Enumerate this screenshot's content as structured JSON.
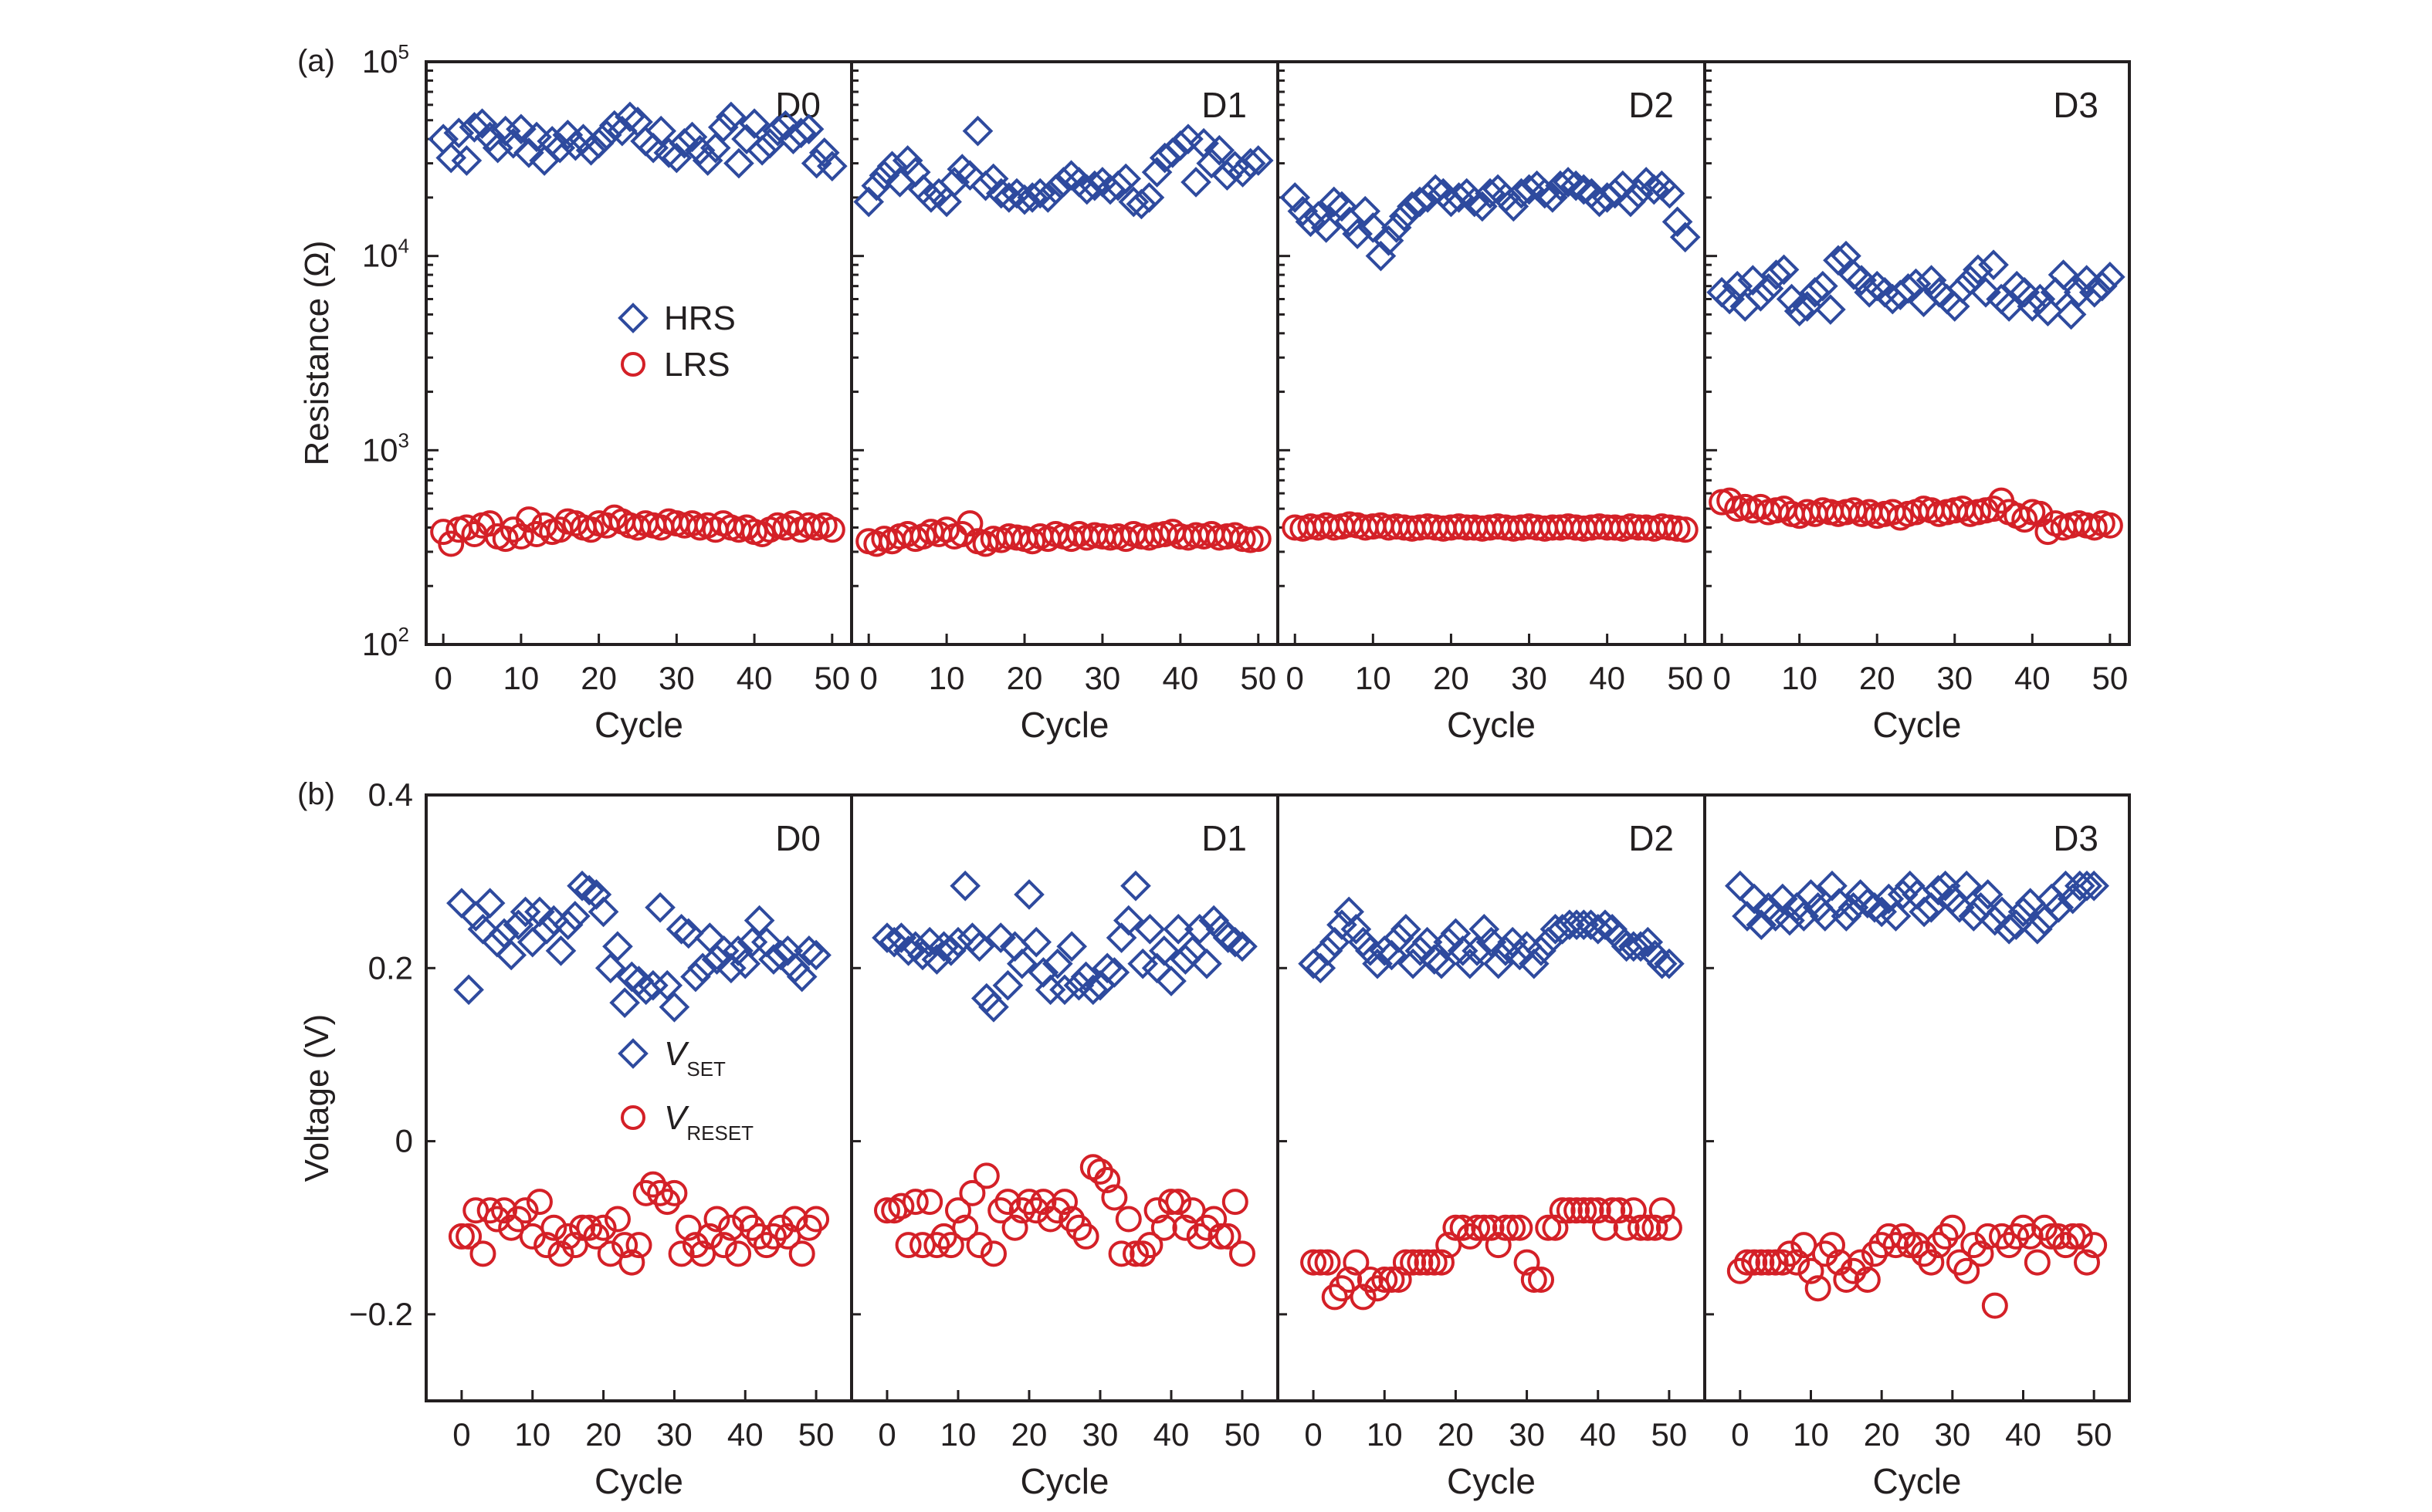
{
  "chart_data": [
    {
      "id": "a",
      "type": "scatter",
      "panel_label": "(a)",
      "ylabel": "Resistance (Ω)",
      "xlabel": "Cycle",
      "yscale": "log",
      "ylim": [
        100,
        100000
      ],
      "xlim": [
        -2.2,
        52.5
      ],
      "xticks": [
        0,
        10,
        20,
        30,
        40,
        50
      ],
      "yticks": [
        {
          "v": 100,
          "base": "10",
          "exp": "2"
        },
        {
          "v": 1000,
          "base": "10",
          "exp": "3"
        },
        {
          "v": 10000,
          "base": "10",
          "exp": "4"
        },
        {
          "v": 100000,
          "base": "10",
          "exp": "5"
        }
      ],
      "legend": {
        "placement": "center-left of D0",
        "entries": [
          {
            "label": "HRS",
            "marker": "diamond",
            "color": "#2e4a9e"
          },
          {
            "label": "LRS",
            "marker": "circle",
            "color": "#d42027"
          }
        ]
      },
      "subplots": [
        {
          "name": "D0",
          "HRS": [
            40000,
            32000,
            43000,
            31000,
            46000,
            48000,
            41000,
            36000,
            44000,
            38000,
            45000,
            34000,
            41000,
            31000,
            39000,
            36000,
            42000,
            37000,
            40000,
            35000,
            38000,
            42000,
            47000,
            44000,
            52000,
            49000,
            39000,
            36000,
            44000,
            34000,
            32000,
            38000,
            41000,
            35000,
            31000,
            36000,
            46000,
            52000,
            30000,
            40000,
            48000,
            35000,
            38000,
            44000,
            47000,
            40000,
            43000,
            45000,
            30000,
            34000,
            29000
          ],
          "LRS": [
            380,
            330,
            390,
            400,
            370,
            410,
            420,
            360,
            350,
            390,
            360,
            440,
            370,
            410,
            380,
            390,
            430,
            420,
            400,
            390,
            420,
            410,
            450,
            430,
            410,
            400,
            420,
            410,
            400,
            430,
            420,
            410,
            420,
            400,
            410,
            390,
            420,
            400,
            390,
            400,
            380,
            370,
            390,
            410,
            400,
            420,
            390,
            410,
            400,
            410,
            390
          ]
        },
        {
          "name": "D1",
          "HRS": [
            19000,
            23000,
            26000,
            29000,
            24000,
            31000,
            27000,
            22000,
            20000,
            21000,
            19000,
            24000,
            28000,
            26000,
            44000,
            23000,
            25000,
            21000,
            20000,
            21000,
            19500,
            20000,
            21000,
            20000,
            22000,
            24000,
            26000,
            24000,
            22000,
            23000,
            24000,
            22000,
            23000,
            25000,
            19000,
            18500,
            20000,
            27000,
            32000,
            34000,
            37000,
            40000,
            24000,
            38000,
            30000,
            35000,
            26000,
            29000,
            27000,
            30000,
            31000
          ],
          "LRS": [
            340,
            330,
            350,
            340,
            360,
            370,
            350,
            360,
            380,
            370,
            390,
            360,
            370,
            420,
            340,
            330,
            350,
            345,
            360,
            355,
            350,
            340,
            360,
            350,
            370,
            360,
            350,
            370,
            355,
            365,
            360,
            355,
            360,
            350,
            370,
            360,
            355,
            365,
            370,
            380,
            360,
            355,
            365,
            360,
            370,
            355,
            360,
            365,
            350,
            345,
            350
          ]
        },
        {
          "name": "D2",
          "HRS": [
            20000,
            17000,
            15000,
            16000,
            14000,
            19000,
            18000,
            15000,
            13000,
            17000,
            14000,
            10000,
            12000,
            14000,
            16000,
            18000,
            19000,
            20000,
            22000,
            21000,
            19000,
            20000,
            21000,
            19000,
            18000,
            21000,
            22000,
            20000,
            18000,
            21000,
            22000,
            23000,
            21000,
            20000,
            23000,
            24000,
            23000,
            22000,
            21000,
            19000,
            20000,
            21000,
            23000,
            19000,
            21000,
            24000,
            22000,
            23000,
            21000,
            15000,
            12500
          ],
          "LRS": [
            400,
            395,
            405,
            400,
            410,
            400,
            405,
            415,
            410,
            400,
            405,
            410,
            400,
            405,
            400,
            395,
            400,
            405,
            400,
            395,
            400,
            405,
            400,
            400,
            395,
            400,
            405,
            400,
            395,
            400,
            405,
            400,
            395,
            400,
            400,
            405,
            400,
            395,
            400,
            405,
            400,
            400,
            395,
            405,
            400,
            400,
            395,
            405,
            400,
            395,
            390
          ]
        },
        {
          "name": "D3",
          "HRS": [
            6500,
            6000,
            7000,
            5500,
            7500,
            6200,
            6800,
            8000,
            8500,
            6000,
            5200,
            5500,
            6500,
            7000,
            5300,
            9500,
            10000,
            8000,
            7500,
            6500,
            7000,
            6500,
            6000,
            6300,
            6800,
            7200,
            5800,
            7500,
            6500,
            6000,
            5500,
            6800,
            7500,
            8500,
            6500,
            9000,
            6000,
            5500,
            7000,
            6500,
            5500,
            6000,
            5200,
            6500,
            8000,
            5000,
            6500,
            7500,
            6500,
            7000,
            7800
          ],
          "LRS": [
            540,
            550,
            500,
            510,
            490,
            510,
            480,
            490,
            500,
            470,
            460,
            480,
            470,
            490,
            480,
            470,
            480,
            490,
            470,
            480,
            460,
            470,
            480,
            450,
            470,
            480,
            500,
            490,
            470,
            480,
            490,
            500,
            470,
            480,
            490,
            500,
            550,
            480,
            460,
            440,
            480,
            470,
            380,
            420,
            400,
            410,
            420,
            410,
            400,
            420,
            410
          ]
        }
      ]
    },
    {
      "id": "b",
      "type": "scatter",
      "panel_label": "(b)",
      "ylabel": "Voltage (V)",
      "xlabel": "Cycle",
      "yscale": "linear",
      "ylim": [
        -0.3,
        0.4
      ],
      "xlim": [
        -5,
        55
      ],
      "xticks": [
        0,
        10,
        20,
        30,
        40,
        50
      ],
      "yticks": [
        {
          "v": 0.4,
          "t": "0.4"
        },
        {
          "v": 0.2,
          "t": "0.2"
        },
        {
          "v": 0,
          "t": "0"
        },
        {
          "v": -0.2,
          "t": "−0.2"
        }
      ],
      "legend": {
        "placement": "center-left of D0",
        "entries": [
          {
            "label": "V",
            "sub": "SET",
            "marker": "diamond",
            "color": "#2e4a9e"
          },
          {
            "label": "V",
            "sub": "RESET",
            "marker": "circle",
            "color": "#d42027"
          }
        ]
      },
      "subplots": [
        {
          "name": "D0",
          "VSET": [
            0.275,
            0.175,
            0.26,
            0.245,
            0.275,
            0.23,
            0.24,
            0.215,
            0.25,
            0.265,
            0.23,
            0.265,
            0.245,
            0.255,
            0.22,
            0.25,
            0.26,
            0.295,
            0.29,
            0.285,
            0.265,
            0.2,
            0.225,
            0.16,
            0.19,
            0.185,
            0.175,
            0.18,
            0.27,
            0.18,
            0.155,
            0.245,
            0.24,
            0.19,
            0.2,
            0.235,
            0.21,
            0.22,
            0.2,
            0.22,
            0.205,
            0.23,
            0.255,
            0.23,
            0.21,
            0.215,
            0.22,
            0.2,
            0.19,
            0.22,
            0.215
          ],
          "VRESET": [
            -0.11,
            -0.11,
            -0.08,
            -0.13,
            -0.08,
            -0.09,
            -0.08,
            -0.1,
            -0.09,
            -0.08,
            -0.11,
            -0.07,
            -0.12,
            -0.1,
            -0.13,
            -0.11,
            -0.12,
            -0.1,
            -0.1,
            -0.11,
            -0.1,
            -0.13,
            -0.09,
            -0.12,
            -0.14,
            -0.12,
            -0.06,
            -0.05,
            -0.06,
            -0.07,
            -0.06,
            -0.13,
            -0.1,
            -0.12,
            -0.13,
            -0.11,
            -0.09,
            -0.12,
            -0.1,
            -0.13,
            -0.09,
            -0.1,
            -0.11,
            -0.12,
            -0.11,
            -0.1,
            -0.11,
            -0.09,
            -0.13,
            -0.1,
            -0.09
          ]
        },
        {
          "name": "D1",
          "VSET": [
            0.235,
            0.23,
            0.235,
            0.22,
            0.225,
            0.215,
            0.23,
            0.21,
            0.225,
            0.22,
            0.23,
            0.295,
            0.235,
            0.225,
            0.165,
            0.155,
            0.235,
            0.18,
            0.225,
            0.205,
            0.285,
            0.23,
            0.195,
            0.175,
            0.205,
            0.175,
            0.225,
            0.18,
            0.19,
            0.175,
            0.18,
            0.2,
            0.195,
            0.235,
            0.255,
            0.295,
            0.205,
            0.245,
            0.2,
            0.22,
            0.185,
            0.245,
            0.21,
            0.22,
            0.245,
            0.205,
            0.255,
            0.245,
            0.235,
            0.23,
            0.225
          ],
          "VRESET": [
            -0.08,
            -0.08,
            -0.075,
            -0.12,
            -0.07,
            -0.12,
            -0.07,
            -0.12,
            -0.11,
            -0.12,
            -0.08,
            -0.1,
            -0.06,
            -0.12,
            -0.04,
            -0.13,
            -0.08,
            -0.07,
            -0.1,
            -0.08,
            -0.07,
            -0.08,
            -0.07,
            -0.09,
            -0.08,
            -0.07,
            -0.09,
            -0.1,
            -0.11,
            -0.03,
            -0.035,
            -0.045,
            -0.065,
            -0.13,
            -0.09,
            -0.13,
            -0.13,
            -0.12,
            -0.08,
            -0.1,
            -0.07,
            -0.07,
            -0.1,
            -0.08,
            -0.11,
            -0.1,
            -0.09,
            -0.11,
            -0.11,
            -0.07,
            -0.13
          ]
        },
        {
          "name": "D2",
          "VSET": [
            0.205,
            0.2,
            0.22,
            0.23,
            0.25,
            0.265,
            0.245,
            0.23,
            0.22,
            0.205,
            0.22,
            0.215,
            0.235,
            0.245,
            0.205,
            0.22,
            0.23,
            0.21,
            0.205,
            0.23,
            0.24,
            0.22,
            0.205,
            0.22,
            0.245,
            0.23,
            0.205,
            0.22,
            0.23,
            0.215,
            0.225,
            0.205,
            0.22,
            0.23,
            0.245,
            0.245,
            0.25,
            0.25,
            0.25,
            0.25,
            0.245,
            0.25,
            0.245,
            0.235,
            0.225,
            0.225,
            0.225,
            0.23,
            0.215,
            0.205,
            0.205
          ],
          "VRESET": [
            -0.14,
            -0.14,
            -0.14,
            -0.18,
            -0.17,
            -0.16,
            -0.14,
            -0.18,
            -0.16,
            -0.17,
            -0.16,
            -0.16,
            -0.16,
            -0.14,
            -0.14,
            -0.14,
            -0.14,
            -0.14,
            -0.14,
            -0.12,
            -0.1,
            -0.1,
            -0.11,
            -0.1,
            -0.1,
            -0.1,
            -0.12,
            -0.1,
            -0.1,
            -0.1,
            -0.14,
            -0.16,
            -0.16,
            -0.1,
            -0.1,
            -0.08,
            -0.08,
            -0.08,
            -0.08,
            -0.08,
            -0.08,
            -0.1,
            -0.08,
            -0.08,
            -0.1,
            -0.08,
            -0.1,
            -0.1,
            -0.1,
            -0.08,
            -0.1
          ]
        },
        {
          "name": "D3",
          "VSET": [
            0.295,
            0.26,
            0.28,
            0.25,
            0.27,
            0.26,
            0.28,
            0.255,
            0.27,
            0.26,
            0.285,
            0.27,
            0.26,
            0.295,
            0.275,
            0.26,
            0.27,
            0.285,
            0.275,
            0.27,
            0.265,
            0.28,
            0.26,
            0.285,
            0.295,
            0.285,
            0.265,
            0.27,
            0.29,
            0.295,
            0.28,
            0.27,
            0.295,
            0.26,
            0.27,
            0.285,
            0.255,
            0.265,
            0.245,
            0.25,
            0.265,
            0.275,
            0.245,
            0.255,
            0.28,
            0.27,
            0.295,
            0.28,
            0.295,
            0.295,
            0.295
          ],
          "VRESET": [
            -0.15,
            -0.14,
            -0.14,
            -0.14,
            -0.14,
            -0.14,
            -0.14,
            -0.13,
            -0.14,
            -0.12,
            -0.15,
            -0.17,
            -0.13,
            -0.12,
            -0.14,
            -0.16,
            -0.15,
            -0.14,
            -0.16,
            -0.13,
            -0.12,
            -0.11,
            -0.12,
            -0.11,
            -0.12,
            -0.12,
            -0.13,
            -0.14,
            -0.12,
            -0.11,
            -0.1,
            -0.14,
            -0.15,
            -0.12,
            -0.13,
            -0.11,
            -0.19,
            -0.11,
            -0.12,
            -0.11,
            -0.1,
            -0.11,
            -0.14,
            -0.1,
            -0.11,
            -0.11,
            -0.12,
            -0.11,
            -0.11,
            -0.14,
            -0.12
          ]
        }
      ]
    }
  ]
}
